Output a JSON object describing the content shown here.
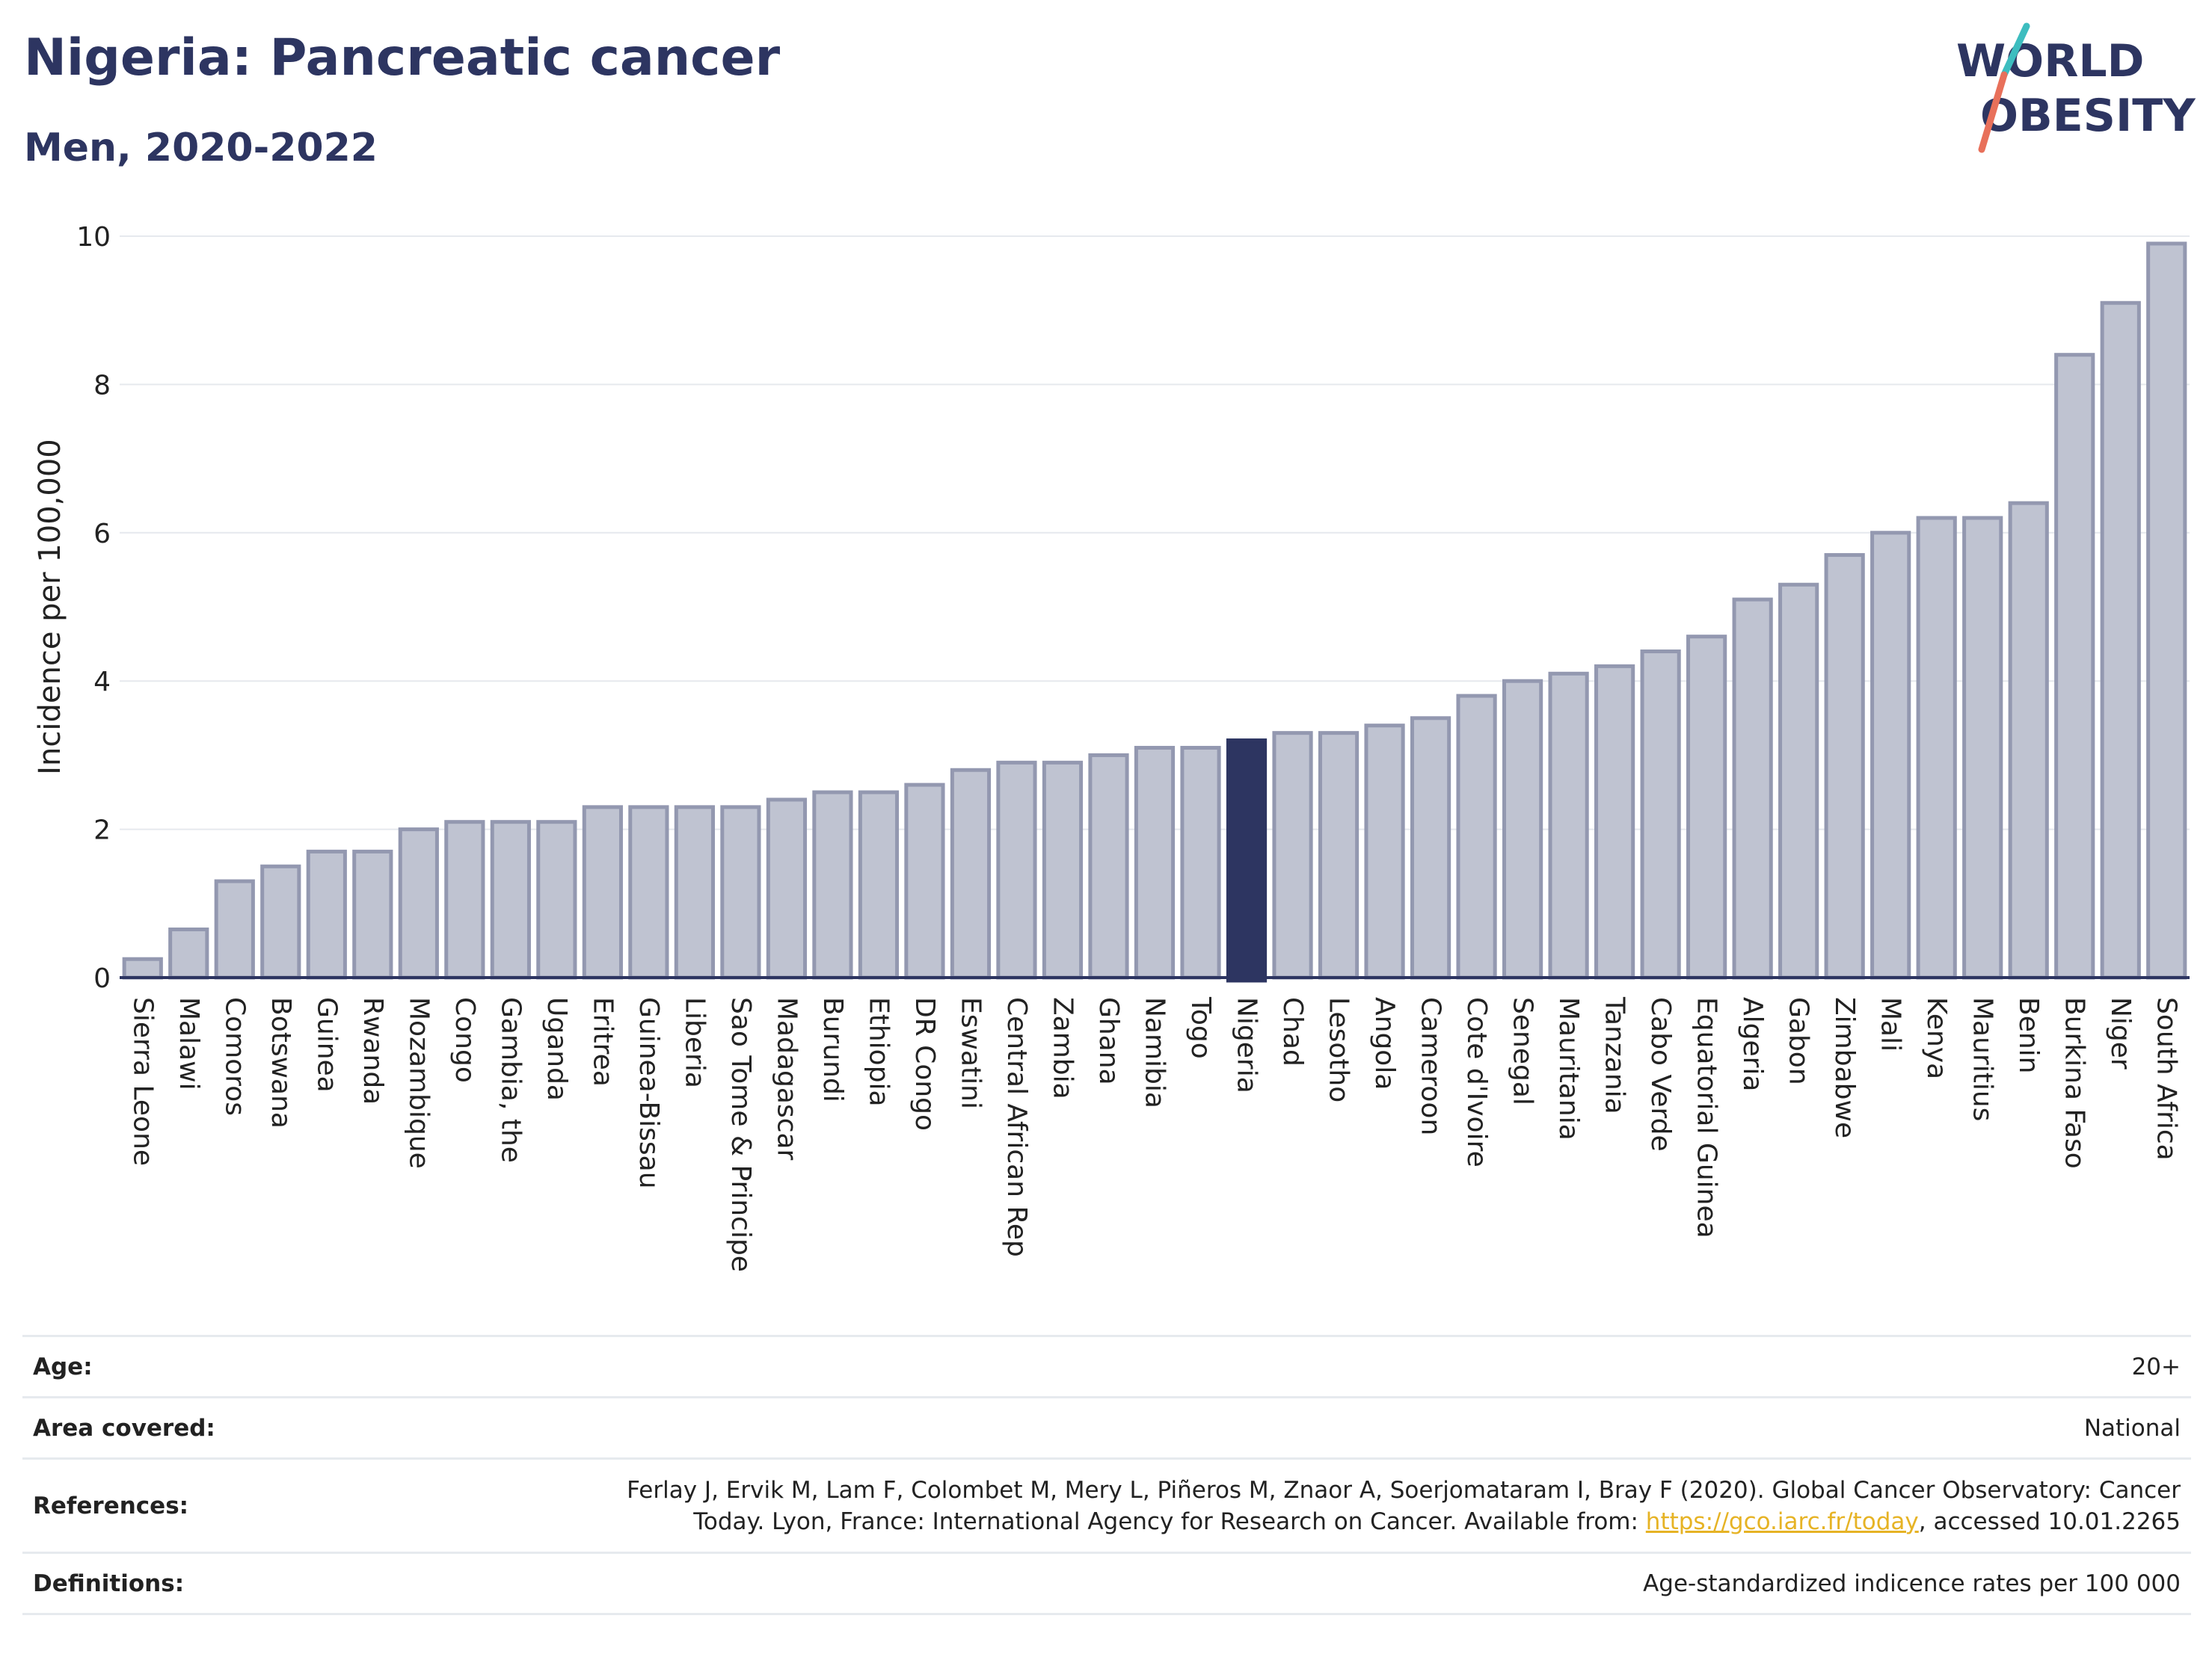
{
  "header": {
    "title": "Nigeria: Pancreatic cancer",
    "subtitle": "Men, 2020-2022"
  },
  "logo": {
    "line1": "WORLD",
    "line2": "OBESITY",
    "colors": {
      "text": "#2d3561",
      "slash_teal": "#3dbdbf",
      "slash_coral": "#e8705a"
    }
  },
  "colors": {
    "bar_fill": "#bfc3d1",
    "bar_stroke": "#9398b0",
    "highlight": "#2d3561",
    "grid": "#e6e9ee",
    "axis": "#2d3561"
  },
  "chart_data": {
    "type": "bar",
    "ylabel": "Incidence per 100,000",
    "xlabel": "",
    "ylim": [
      0,
      10
    ],
    "yticks": [
      0,
      2,
      4,
      6,
      8,
      10
    ],
    "highlight": "Nigeria",
    "categories": [
      "Sierra Leone",
      "Malawi",
      "Comoros",
      "Botswana",
      "Guinea",
      "Rwanda",
      "Mozambique",
      "Congo",
      "Gambia, the",
      "Uganda",
      "Eritrea",
      "Guinea-Bissau",
      "Liberia",
      "Sao Tome & Principe",
      "Madagascar",
      "Burundi",
      "Ethiopia",
      "DR Congo",
      "Eswatini",
      "Central African Rep",
      "Zambia",
      "Ghana",
      "Namibia",
      "Togo",
      "Nigeria",
      "Chad",
      "Lesotho",
      "Angola",
      "Cameroon",
      "Cote d'Ivoire",
      "Senegal",
      "Mauritania",
      "Tanzania",
      "Cabo Verde",
      "Equatorial Guinea",
      "Algeria",
      "Gabon",
      "Zimbabwe",
      "Mali",
      "Kenya",
      "Mauritius",
      "Benin",
      "Burkina Faso",
      "Niger",
      "South Africa"
    ],
    "values": [
      0.25,
      0.65,
      1.3,
      1.5,
      1.7,
      1.7,
      2.0,
      2.1,
      2.1,
      2.1,
      2.3,
      2.3,
      2.3,
      2.3,
      2.4,
      2.5,
      2.5,
      2.6,
      2.8,
      2.9,
      2.9,
      3.0,
      3.1,
      3.1,
      3.2,
      3.3,
      3.3,
      3.4,
      3.5,
      3.8,
      4.0,
      4.1,
      4.2,
      4.4,
      4.6,
      5.1,
      5.3,
      5.7,
      6.0,
      6.2,
      6.2,
      6.4,
      8.4,
      9.1,
      9.9
    ]
  },
  "info_table": {
    "age_label": "Age:",
    "age_value": "20+",
    "area_label": "Area covered:",
    "area_value": "National",
    "references_label": "References:",
    "references_text_1": "Ferlay J, Ervik M, Lam F, Colombet M, Mery L, Piñeros M, Znaor A, Soerjomataram I, Bray F (2020). Global Cancer Observatory: Cancer",
    "references_text_2": "Today. Lyon, France: International Agency for Research on Cancer. Available from: ",
    "references_link": "https://gco.iarc.fr/today",
    "references_text_3": ", accessed 10.01.2265",
    "definitions_label": "Definitions:",
    "definitions_value": "Age-standardized indicence rates per 100 000"
  }
}
